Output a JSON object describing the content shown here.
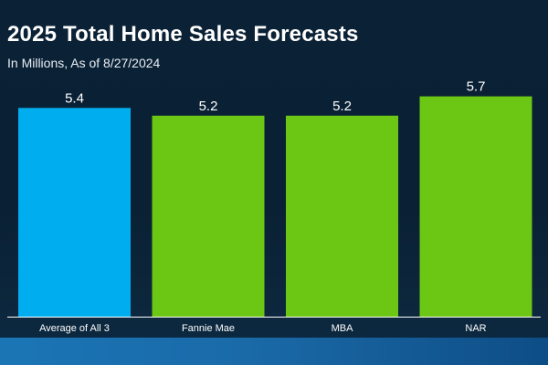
{
  "header": {
    "title": "2025 Total Home Sales Forecasts",
    "subtitle": "In Millions, As of 8/27/2024"
  },
  "colors": {
    "highlight": "#00aeef",
    "bar": "#6cc614",
    "axis": "#ffffff",
    "text": "#ffffff"
  },
  "chart_data": {
    "type": "bar",
    "title": "2025 Total Home Sales Forecasts",
    "subtitle": "In Millions, As of 8/27/2024",
    "categories": [
      "Average of All 3",
      "Fannie Mae",
      "MBA",
      "NAR"
    ],
    "values": [
      5.4,
      5.2,
      5.2,
      5.7
    ],
    "value_labels": [
      "5.4",
      "5.2",
      "5.2",
      "5.7"
    ],
    "bar_colors": [
      "#00aeef",
      "#6cc614",
      "#6cc614",
      "#6cc614"
    ],
    "ylim": [
      0,
      5.95
    ],
    "grid": false,
    "legend": "none"
  }
}
